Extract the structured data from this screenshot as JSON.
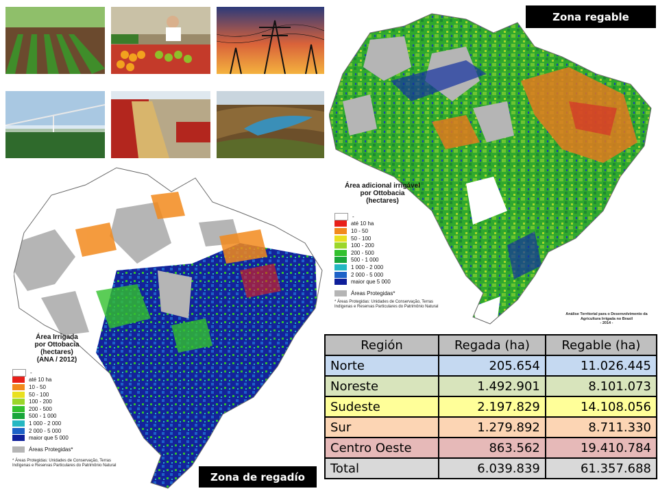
{
  "badges": {
    "regable": "Zona regable",
    "regadio": "Zona de regadío"
  },
  "photos": [
    {
      "subject": "vegetable-rows-field"
    },
    {
      "subject": "produce-market"
    },
    {
      "subject": "power-lines-sunset"
    },
    {
      "subject": "center-pivot-irrigation"
    },
    {
      "subject": "grain-harvest-unloading"
    },
    {
      "subject": "reservoir-dam"
    }
  ],
  "legend_regable": {
    "title_lines": [
      "Área adicional irrigável",
      "por Ottobacia",
      "(hectares)"
    ],
    "items": [
      {
        "label": "-",
        "color": "#ffffff"
      },
      {
        "label": "até 10 ha",
        "color": "#e8201a"
      },
      {
        "label": "10 - 50",
        "color": "#f28a1d"
      },
      {
        "label": "50 - 100",
        "color": "#e9e01f"
      },
      {
        "label": "100 - 200",
        "color": "#9bd62a"
      },
      {
        "label": "200 - 500",
        "color": "#33c12e"
      },
      {
        "label": "500 - 1 000",
        "color": "#19a63a"
      },
      {
        "label": "1 000 - 2 000",
        "color": "#24b7c2"
      },
      {
        "label": "2 000 - 5 000",
        "color": "#1d62c7"
      },
      {
        "label": "maior que 5 000",
        "color": "#0f1f9a"
      },
      {
        "label": "Áreas Protegidas*",
        "color": "#b5b5b5"
      }
    ],
    "note": "* Áreas Protegidas: Unidades de Conservação, Terras Indígenas e Reservas Particulares do Patrimônio Natural",
    "credit": [
      "Análise Territorial para o Desenvolvimento da",
      "Agricultura Irrigada no Brasil",
      "- 2014 -"
    ]
  },
  "legend_regadio": {
    "title_lines": [
      "Área Irrigada",
      "por Ottobacia",
      "(hectares)",
      "(ANA / 2012)"
    ],
    "items": [
      {
        "label": "-",
        "color": "#ffffff"
      },
      {
        "label": "até 10 ha",
        "color": "#e8201a"
      },
      {
        "label": "10 - 50",
        "color": "#f28a1d"
      },
      {
        "label": "50 - 100",
        "color": "#e9e01f"
      },
      {
        "label": "100 - 200",
        "color": "#9bd62a"
      },
      {
        "label": "200 - 500",
        "color": "#33c12e"
      },
      {
        "label": "500 - 1 000",
        "color": "#19a63a"
      },
      {
        "label": "1 000 - 2 000",
        "color": "#24b7c2"
      },
      {
        "label": "2 000 - 5 000",
        "color": "#1d62c7"
      },
      {
        "label": "maior que 5 000",
        "color": "#0f1f9a"
      },
      {
        "label": "Áreas Protegidas*",
        "color": "#b5b5b5"
      }
    ],
    "note": "* Áreas Protegidas: Unidades de Conservação, Terras Indígenas e Reservas Particulares do Patrimônio Natural"
  },
  "table": {
    "headers": [
      "Región",
      "Regada (ha)",
      "Regable (ha)"
    ],
    "rows": [
      {
        "region": "Norte",
        "regada": "205.654",
        "regable": "11.026.445",
        "color": "#c5d9f1"
      },
      {
        "region": "Noreste",
        "regada": "1.492.901",
        "regable": "8.101.073",
        "color": "#d8e4bc"
      },
      {
        "region": "Sudeste",
        "regada": "2.197.829",
        "regable": "14.108.056",
        "color": "#ffff99"
      },
      {
        "region": "Sur",
        "regada": "1.279.892",
        "regable": "8.711.330",
        "color": "#fcd5b4"
      },
      {
        "region": "Centro Oeste",
        "regada": "863.562",
        "regable": "19.410.784",
        "color": "#e6b9b8"
      }
    ],
    "total": {
      "region": "Total",
      "regada": "6.039.839",
      "regable": "61.357.688",
      "color": "#d9d9d9"
    }
  }
}
